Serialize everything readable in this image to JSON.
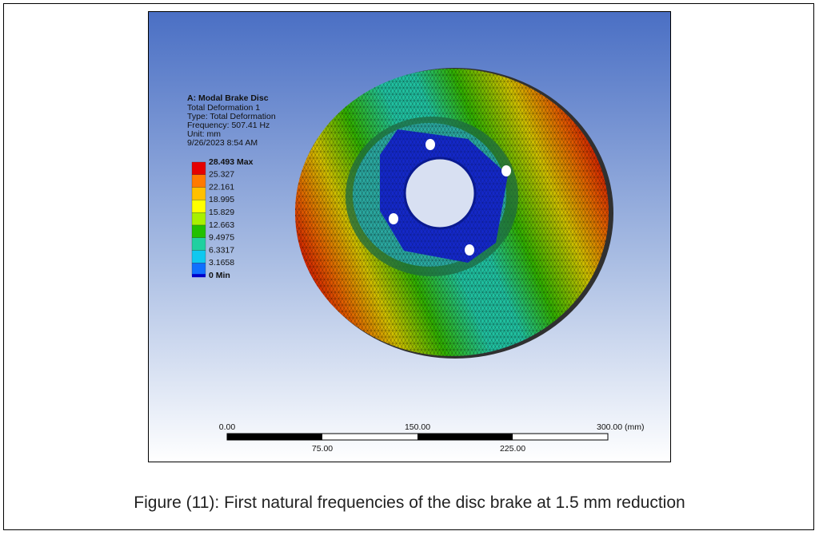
{
  "figure": {
    "legend": {
      "title": "A: Modal Brake  Disc",
      "lines": [
        "Total Deformation 1",
        "Type: Total Deformation",
        "Frequency: 507.41 Hz",
        "Unit: mm",
        "9/26/2023 8:54 AM"
      ],
      "levels": [
        "28.493 Max",
        "25.327",
        "22.161",
        "18.995",
        "15.829",
        "12.663",
        "9.4975",
        "6.3317",
        "3.1658",
        "0 Min"
      ],
      "colors": [
        "#e50000",
        "#ff7a00",
        "#ffc000",
        "#ffff00",
        "#a8f000",
        "#22c000",
        "#20d0a0",
        "#10c8f0",
        "#1070ff",
        "#0000c8"
      ]
    },
    "scale_bar": {
      "top_labels": [
        "0.00",
        "150.00",
        "300.00 (mm)"
      ],
      "bottom_labels": [
        "75.00",
        "225.00"
      ]
    },
    "caption": "Figure (11): First natural frequencies of the disc brake at 1.5 mm reduction"
  }
}
